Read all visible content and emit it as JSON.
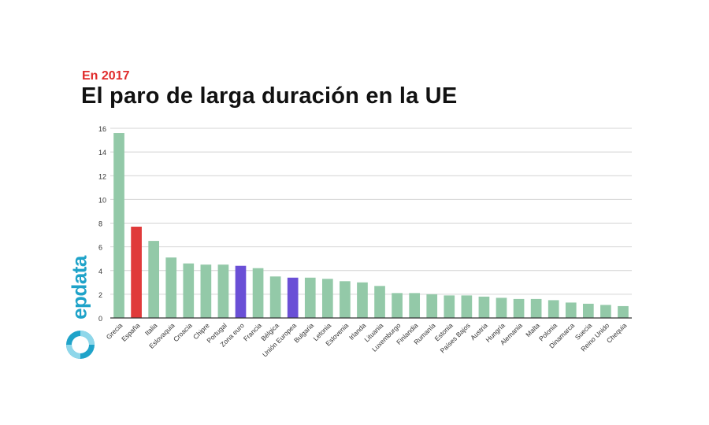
{
  "header": {
    "subtitle": "En 2017",
    "title": "El paro de larga duración en la UE"
  },
  "branding": {
    "logo_text": "epdata",
    "logo_color": "#1fa3c9"
  },
  "colors": {
    "default_bar": "#93c9a8",
    "highlight_spain": "#e03a3a",
    "highlight_aggregate": "#6a4fd6",
    "grid": "#d4d4d4",
    "axis": "#333333",
    "text": "#333333"
  },
  "chart_data": {
    "type": "bar",
    "title": "El paro de larga duración en la UE",
    "subtitle": "En 2017",
    "xlabel": "",
    "ylabel": "",
    "ylim": [
      0,
      16
    ],
    "yticks": [
      0,
      2,
      4,
      6,
      8,
      10,
      12,
      14,
      16
    ],
    "grid": true,
    "categories": [
      "Grecia",
      "España",
      "Italia",
      "Eslovaquia",
      "Croacia",
      "Chipre",
      "Portugal",
      "Zona euro",
      "Francia",
      "Bélgica",
      "Unión Europea",
      "Bulgaria",
      "Letonia",
      "Eslovenia",
      "Irlanda",
      "Lituania",
      "Luxemburgo",
      "Finlandia",
      "Rumanía",
      "Estonia",
      "Países Bajos",
      "Austria",
      "Hungría",
      "Alemania",
      "Malta",
      "Polonia",
      "Dinamarca",
      "Suecia",
      "Reino Unido",
      "Chequia"
    ],
    "values": [
      15.6,
      7.7,
      6.5,
      5.1,
      4.6,
      4.5,
      4.5,
      4.4,
      4.2,
      3.5,
      3.4,
      3.4,
      3.3,
      3.1,
      3.0,
      2.7,
      2.1,
      2.1,
      2.0,
      1.9,
      1.9,
      1.8,
      1.7,
      1.6,
      1.6,
      1.5,
      1.3,
      1.2,
      1.1,
      1.0
    ],
    "bar_colors": [
      "#93c9a8",
      "#e03a3a",
      "#93c9a8",
      "#93c9a8",
      "#93c9a8",
      "#93c9a8",
      "#93c9a8",
      "#6a4fd6",
      "#93c9a8",
      "#93c9a8",
      "#6a4fd6",
      "#93c9a8",
      "#93c9a8",
      "#93c9a8",
      "#93c9a8",
      "#93c9a8",
      "#93c9a8",
      "#93c9a8",
      "#93c9a8",
      "#93c9a8",
      "#93c9a8",
      "#93c9a8",
      "#93c9a8",
      "#93c9a8",
      "#93c9a8",
      "#93c9a8",
      "#93c9a8",
      "#93c9a8",
      "#93c9a8",
      "#93c9a8"
    ]
  }
}
